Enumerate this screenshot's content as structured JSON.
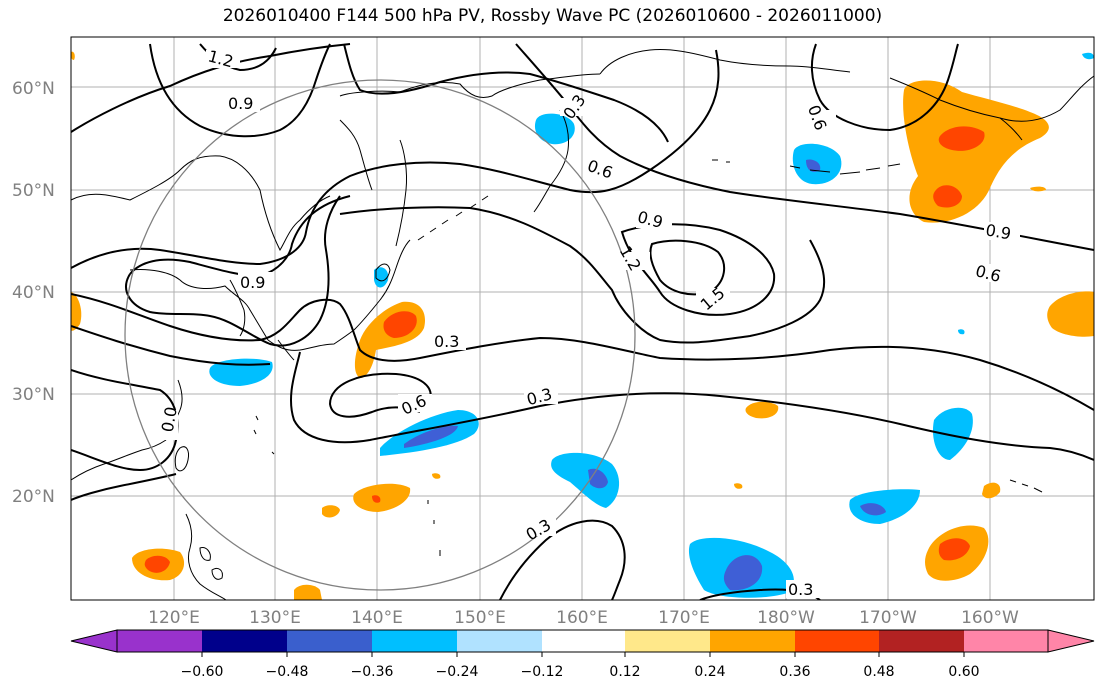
{
  "title": "2026010400 F144 500 hPa PV, Rossby Wave PC (2026010600 - 2026011000)",
  "map": {
    "lat_labels": [
      "60°N",
      "50°N",
      "40°N",
      "30°N",
      "20°N"
    ],
    "lon_labels": [
      "120°E",
      "130°E",
      "140°E",
      "150°E",
      "160°E",
      "170°E",
      "180°W",
      "170°W",
      "160°W"
    ],
    "contour_labels": [
      "1.2",
      "0.9",
      "0.3",
      "0.6",
      "0.6",
      "0.9",
      "1.2",
      "1.5",
      "0.9",
      "0.6",
      "0.9",
      "0.3",
      "0.6",
      "0.3",
      "0.0",
      "0.3",
      "0.3"
    ],
    "contour_color": "#000000",
    "coastline_color": "#000000",
    "grid_color": "#b0b0b0",
    "circle_color": "#808080",
    "negative_fill_colors": [
      "#00bfff",
      "#3f5fd6"
    ],
    "positive_fill_colors": [
      "#ffa500",
      "#ff4500"
    ]
  },
  "colorbar": {
    "colors": [
      "#9932cc",
      "#00008b",
      "#3a5fcd",
      "#00bfff",
      "#b0e2ff",
      "#ffffff",
      "#ffe88a",
      "#ffa500",
      "#ff4500",
      "#b22222",
      "#ff85a8"
    ],
    "tick_labels": [
      "−0.60",
      "−0.48",
      "−0.36",
      "−0.24",
      "−0.12",
      "0.12",
      "0.24",
      "0.36",
      "0.48",
      "0.60"
    ]
  }
}
